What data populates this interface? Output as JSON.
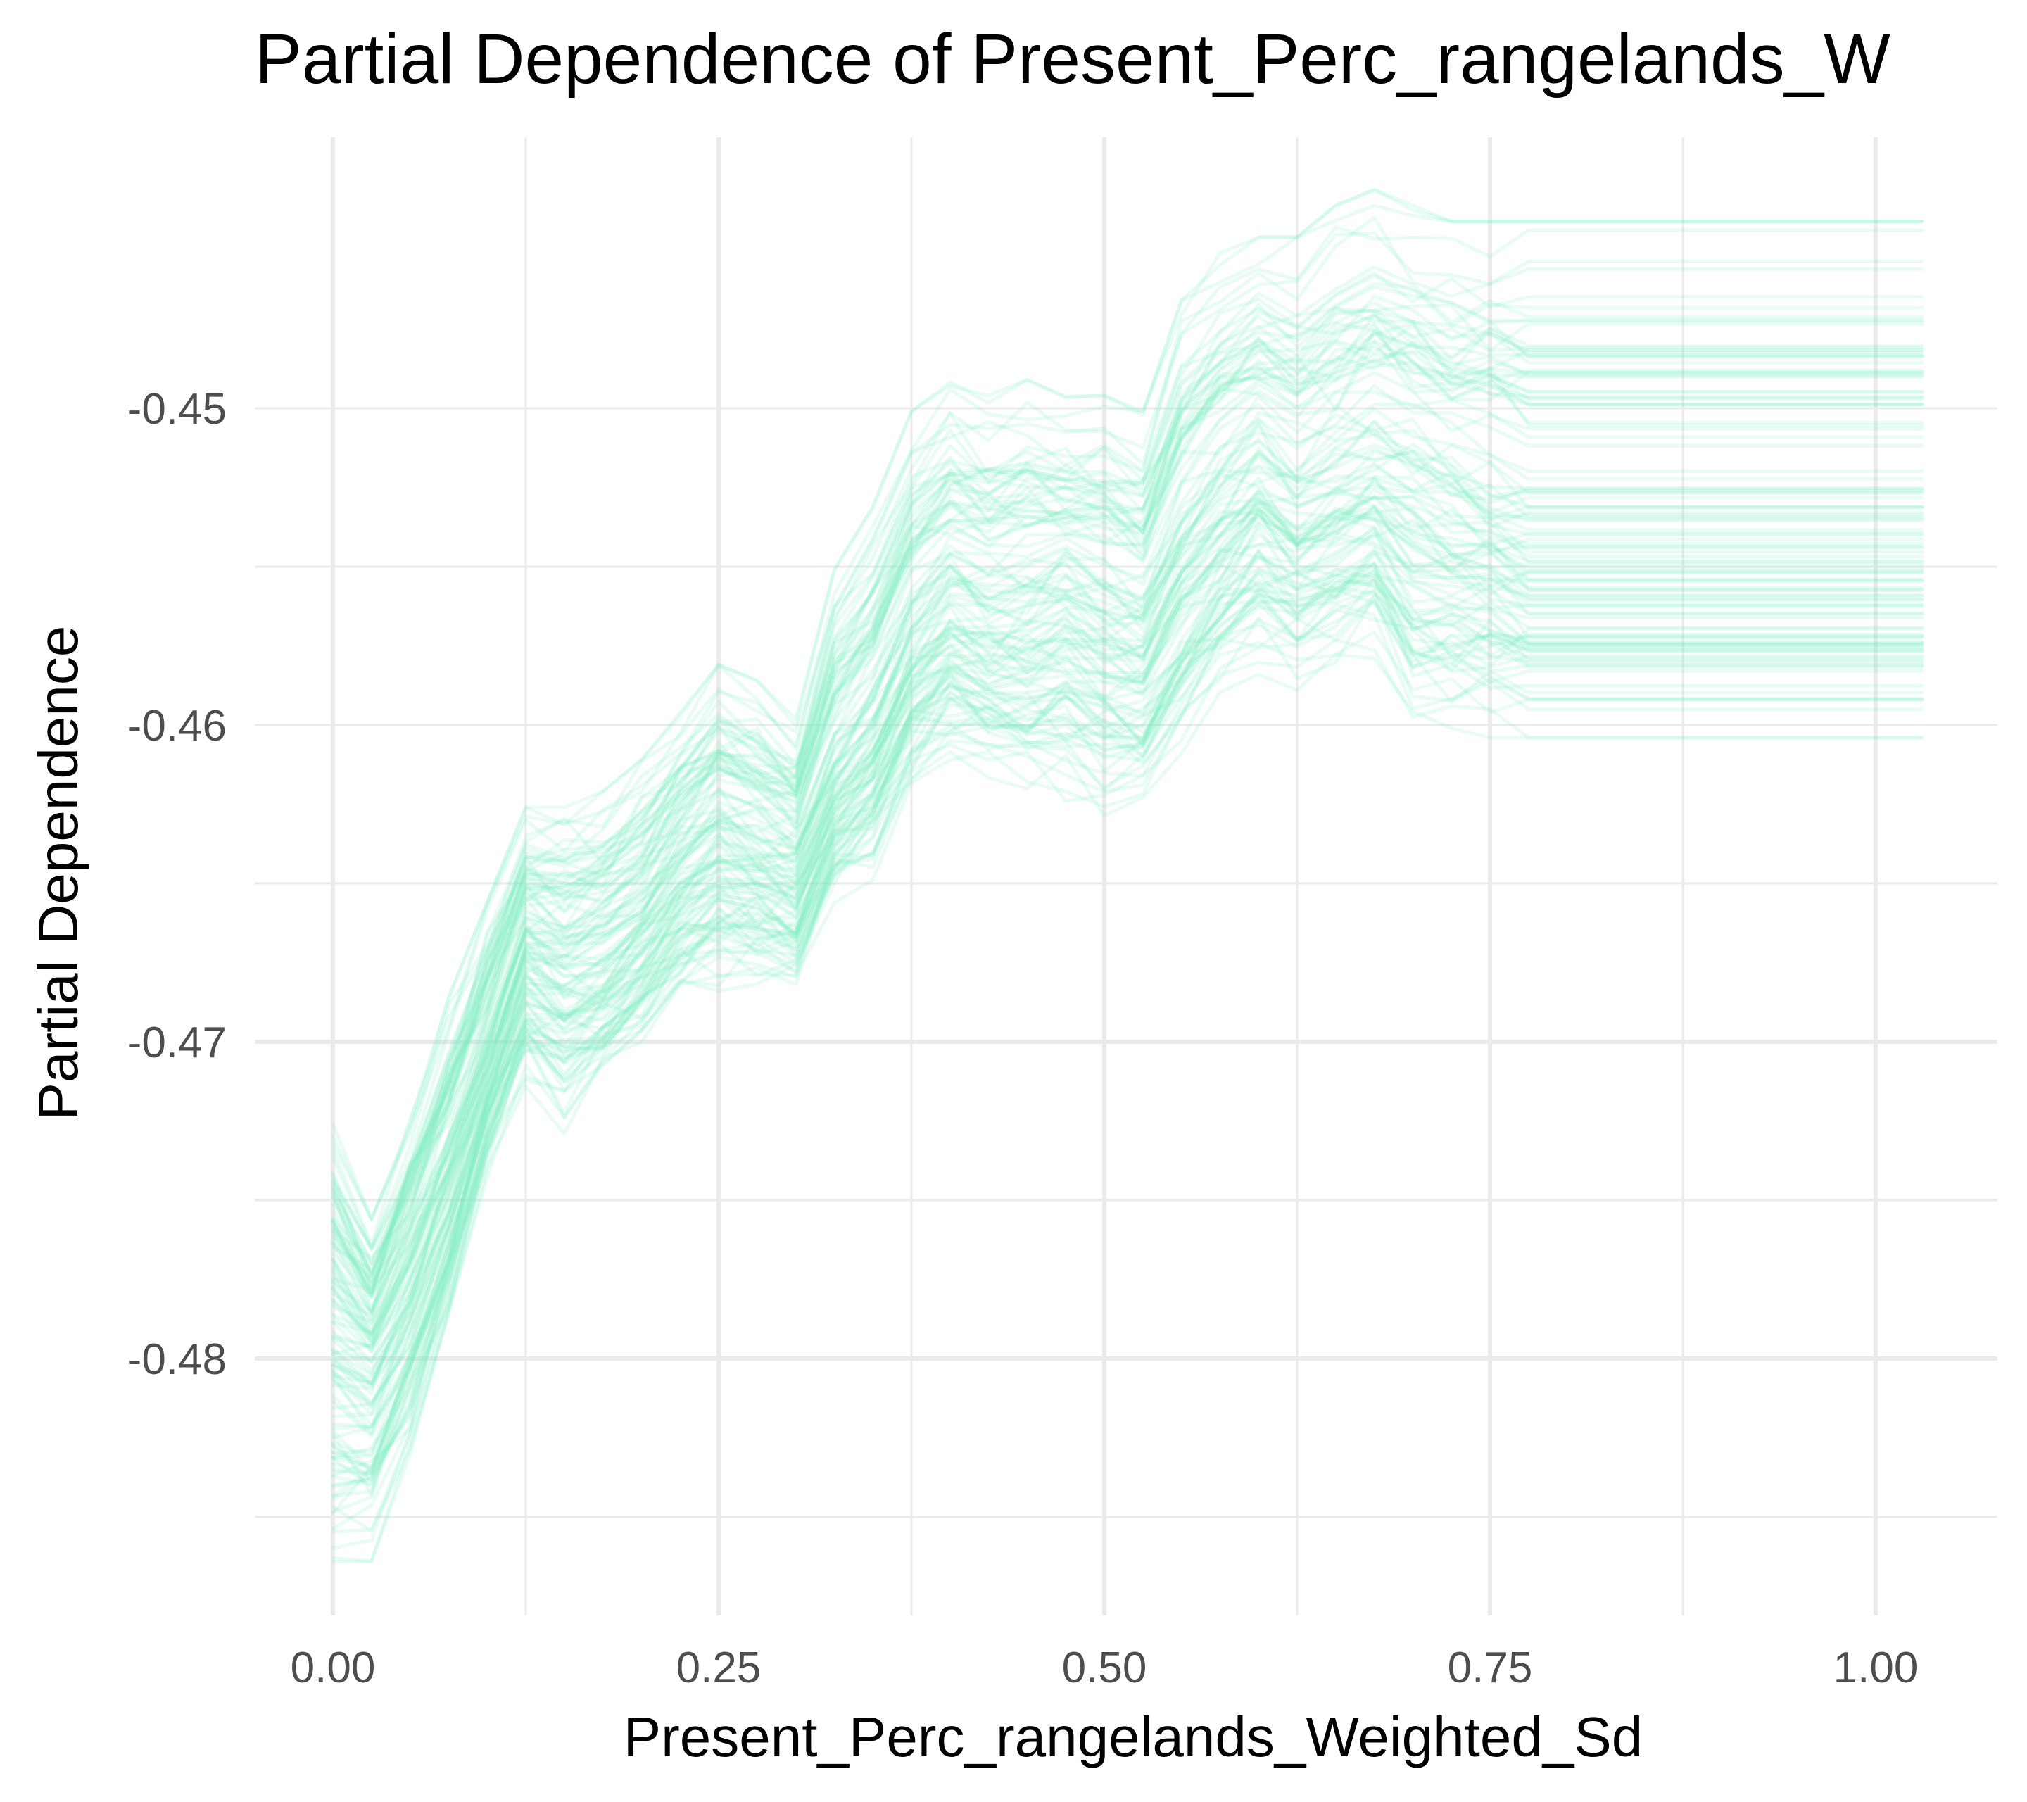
{
  "chart_data": {
    "type": "line",
    "title": "Partial Dependence of Present_Perc_rangelands_W",
    "xlabel": "Present_Perc_rangelands_Weighted_Sd",
    "ylabel": "Partial Dependence",
    "xlim": [
      -0.03,
      1.08
    ],
    "ylim": [
      -0.488,
      -0.443
    ],
    "x_ticks": [
      0.0,
      0.25,
      0.5,
      0.75,
      1.0
    ],
    "x_tick_labels": [
      "0.00",
      "0.25",
      "0.50",
      "0.75",
      "1.00"
    ],
    "y_ticks": [
      -0.48,
      -0.47,
      -0.46,
      -0.45
    ],
    "y_tick_labels": [
      "-0.48",
      "-0.47",
      "-0.46",
      "-0.45"
    ],
    "grid": true,
    "legend": "none",
    "line_color": "#7fecc4",
    "line_opacity": 0.18,
    "series_count": 120,
    "x": [
      0.0,
      0.025,
      0.05,
      0.075,
      0.1,
      0.125,
      0.15,
      0.175,
      0.2,
      0.225,
      0.25,
      0.275,
      0.3,
      0.325,
      0.35,
      0.375,
      0.4,
      0.425,
      0.45,
      0.475,
      0.5,
      0.525,
      0.55,
      0.575,
      0.6,
      0.625,
      0.65,
      0.675,
      0.7,
      0.725,
      0.75,
      0.775,
      1.03
    ],
    "mean_curve": [
      -0.4785,
      -0.4795,
      -0.477,
      -0.474,
      -0.4705,
      -0.467,
      -0.4675,
      -0.467,
      -0.466,
      -0.4645,
      -0.4635,
      -0.464,
      -0.4645,
      -0.4615,
      -0.46,
      -0.4575,
      -0.456,
      -0.4565,
      -0.4565,
      -0.456,
      -0.4565,
      -0.457,
      -0.4545,
      -0.453,
      -0.452,
      -0.453,
      -0.4525,
      -0.452,
      -0.4525,
      -0.453,
      -0.4535,
      -0.454,
      -0.454
    ],
    "lower_band": [
      -0.4865,
      -0.486,
      -0.483,
      -0.479,
      -0.474,
      -0.471,
      -0.4725,
      -0.471,
      -0.47,
      -0.4685,
      -0.468,
      -0.468,
      -0.468,
      -0.4655,
      -0.4645,
      -0.462,
      -0.461,
      -0.4615,
      -0.462,
      -0.462,
      -0.4625,
      -0.4625,
      -0.4605,
      -0.459,
      -0.458,
      -0.4585,
      -0.458,
      -0.4575,
      -0.46,
      -0.46,
      -0.46,
      -0.46,
      -0.46
    ],
    "upper_band": [
      -0.473,
      -0.476,
      -0.4725,
      -0.469,
      -0.466,
      -0.463,
      -0.463,
      -0.4625,
      -0.4615,
      -0.46,
      -0.4585,
      -0.459,
      -0.46,
      -0.4555,
      -0.4535,
      -0.4505,
      -0.4495,
      -0.45,
      -0.4495,
      -0.45,
      -0.45,
      -0.4505,
      -0.447,
      -0.4455,
      -0.445,
      -0.445,
      -0.444,
      -0.4435,
      -0.444,
      -0.4445,
      -0.4445,
      -0.4445,
      -0.4445
    ]
  }
}
